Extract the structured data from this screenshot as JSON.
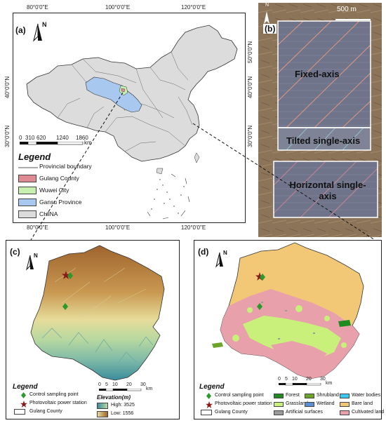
{
  "panel_a": {
    "label": "(a)",
    "north": "N",
    "top_ticks": [
      "80°0'0\"E",
      "100°0'0\"E",
      "120°0'0\"E"
    ],
    "bottom_ticks": [
      "80°0'0\"E",
      "100°0'0\"E",
      "120°0'0\"E"
    ],
    "left_ticks": [
      "30°0'0\"N",
      "40°0'0\"N"
    ],
    "right_ticks": [
      "30°0'0\"N",
      "40°0'0\"N",
      "50°0'0\"N"
    ],
    "scale_labels": [
      "0",
      "310",
      "620",
      "1240",
      "1860"
    ],
    "scale_unit": "km",
    "legend_title": "Legend",
    "legend": [
      {
        "label": "Provincial boundary",
        "color": "#555555"
      },
      {
        "label": "Gulang County",
        "color": "#e08a93"
      },
      {
        "label": "Wuwei City",
        "color": "#c7f0b0"
      },
      {
        "label": "Gansu Province",
        "color": "#a9c8f0"
      },
      {
        "label": "CHINA",
        "color": "#dcdcdc"
      }
    ]
  },
  "panel_b": {
    "label": "(b)",
    "north": "N",
    "scale": "500 m",
    "regions": [
      "Fixed-axis",
      "Tilted single-axis",
      "Horizontal single-axis"
    ]
  },
  "panel_c": {
    "label": "(c)",
    "north": "N",
    "scale_labels": [
      "0",
      "5",
      "10",
      "20",
      "30"
    ],
    "scale_unit": "km",
    "legend_title": "Legend",
    "legend_points": [
      "Control sampling point",
      "Photovoltaic power station",
      "Gulang County"
    ],
    "elevation_title": "Elevation(m)",
    "elevation_high": "High: 3525",
    "elevation_low": "Low: 1556"
  },
  "panel_d": {
    "label": "(d)",
    "north": "N",
    "scale_labels": [
      "0",
      "5",
      "10",
      "20",
      "30"
    ],
    "scale_unit": "km",
    "legend_title": "Legend",
    "legend_points": [
      "Control sampling point",
      "Photovoltaic power station",
      "Gulang County"
    ],
    "landcover": [
      {
        "label": "Forest",
        "color": "#1f8a1f"
      },
      {
        "label": "Shrubland",
        "color": "#6aa52a"
      },
      {
        "label": "Water bodies",
        "color": "#3ac7f0"
      },
      {
        "label": "Grassland",
        "color": "#c8f07a"
      },
      {
        "label": "Wetland",
        "color": "#5a8fd6"
      },
      {
        "label": "Bare land",
        "color": "#f2c877"
      },
      {
        "label": "Artificial surfaces",
        "color": "#9a9a9a"
      },
      {
        "label": "Cultivated land",
        "color": "#e8a0aa"
      }
    ]
  }
}
